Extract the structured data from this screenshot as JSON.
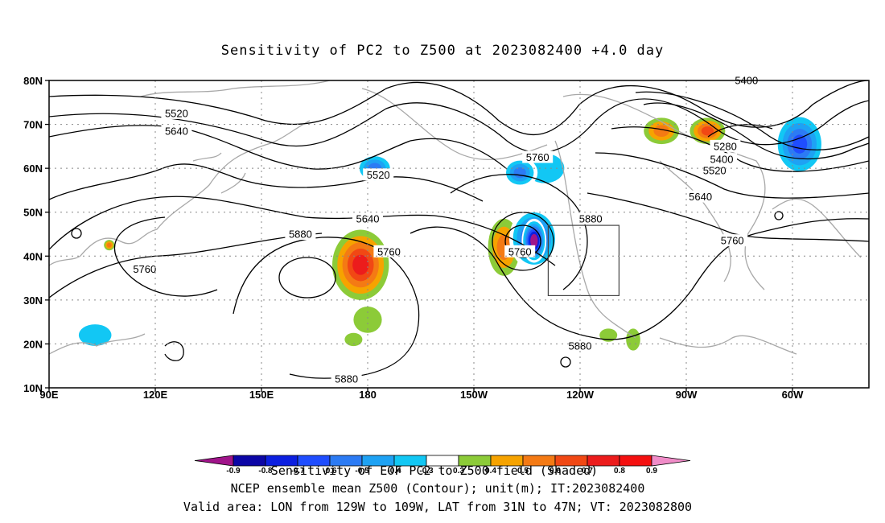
{
  "title": "Sensitivity of PC2 to Z500 at 2023082400 +4.0 day",
  "map": {
    "lon_range": [
      90,
      300
    ],
    "lat_range": [
      10,
      80
    ],
    "lat_ticks": [
      {
        "v": 80,
        "t": "80N"
      },
      {
        "v": 70,
        "t": "70N"
      },
      {
        "v": 60,
        "t": "60N"
      },
      {
        "v": 50,
        "t": "50N"
      },
      {
        "v": 40,
        "t": "40N"
      },
      {
        "v": 30,
        "t": "30N"
      },
      {
        "v": 20,
        "t": "20N"
      },
      {
        "v": 10,
        "t": "10N"
      }
    ],
    "lon_ticks": [
      {
        "v": 90,
        "t": "90E"
      },
      {
        "v": 120,
        "t": "120E"
      },
      {
        "v": 150,
        "t": "150E"
      },
      {
        "v": 180,
        "t": "180"
      },
      {
        "v": 210,
        "t": "150W"
      },
      {
        "v": 240,
        "t": "120W"
      },
      {
        "v": 270,
        "t": "90W"
      },
      {
        "v": 300,
        "t": "60W"
      }
    ],
    "contour_labels": [
      {
        "t": "5520",
        "lon": 126,
        "lat": 72.5
      },
      {
        "t": "5640",
        "lon": 126,
        "lat": 68.5
      },
      {
        "t": "5520",
        "lon": 183,
        "lat": 58.5
      },
      {
        "t": "5640",
        "lon": 180,
        "lat": 48.5
      },
      {
        "t": "5880",
        "lon": 161,
        "lat": 45
      },
      {
        "t": "5760",
        "lon": 117,
        "lat": 37
      },
      {
        "t": "5760",
        "lon": 186,
        "lat": 41
      },
      {
        "t": "5880",
        "lon": 174,
        "lat": 12
      },
      {
        "t": "5760",
        "lon": 228,
        "lat": 62.5
      },
      {
        "t": "5760",
        "lon": 223,
        "lat": 41
      },
      {
        "t": "5880",
        "lon": 243,
        "lat": 48.5
      },
      {
        "t": "5880",
        "lon": 240,
        "lat": 19.5
      },
      {
        "t": "5400",
        "lon": 287,
        "lat": 80
      },
      {
        "t": "5280",
        "lon": 281,
        "lat": 65
      },
      {
        "t": "5400",
        "lon": 280,
        "lat": 62
      },
      {
        "t": "5520",
        "lon": 278,
        "lat": 59.5
      },
      {
        "t": "5640",
        "lon": 274,
        "lat": 53.5
      },
      {
        "t": "5760",
        "lon": 283,
        "lat": 43.5
      }
    ],
    "valid_box": {
      "lon": [
        231,
        251
      ],
      "lat": [
        31,
        47
      ]
    },
    "shading": [
      {
        "lon": 178,
        "lat": 38,
        "rx": 8,
        "ry": 8,
        "value": 0.7
      },
      {
        "lon": 180,
        "lat": 25.5,
        "rx": 4,
        "ry": 3,
        "value": 0.3
      },
      {
        "lon": 176,
        "lat": 21,
        "rx": 2.5,
        "ry": 1.5,
        "value": 0.3
      },
      {
        "lon": 218.5,
        "lat": 42,
        "rx": 4.5,
        "ry": 6.5,
        "value": 0.5
      },
      {
        "lon": 227,
        "lat": 44,
        "rx": 7,
        "ry": 7,
        "value": -0.8
      },
      {
        "lon": 227,
        "lat": 43.5,
        "rx": 3.5,
        "ry": 5,
        "value": -1.0
      },
      {
        "lon": 230,
        "lat": 60,
        "rx": 9,
        "ry": 5.5,
        "value": -0.4
      },
      {
        "lon": 223,
        "lat": 59,
        "rx": 5,
        "ry": 3.5,
        "value": -0.6
      },
      {
        "lon": 182,
        "lat": 60,
        "rx": 5.5,
        "ry": 3.5,
        "value": -0.6
      },
      {
        "lon": 155,
        "lat": 61,
        "rx": 2.5,
        "ry": 1.5,
        "value": -0.3
      },
      {
        "lon": 276,
        "lat": 68.5,
        "rx": 5,
        "ry": 3,
        "value": 0.6
      },
      {
        "lon": 263,
        "lat": 68.5,
        "rx": 5,
        "ry": 3,
        "value": 0.5
      },
      {
        "lon": 302,
        "lat": 65.5,
        "rx": 7.5,
        "ry": 7.5,
        "value": -0.7
      },
      {
        "lon": 103,
        "lat": 22,
        "rx": 7.5,
        "ry": 4,
        "value": -0.4
      },
      {
        "lon": 92,
        "lat": 18,
        "rx": 2.5,
        "ry": 3.5,
        "value": -0.3
      },
      {
        "lon": 107,
        "lat": 42.5,
        "rx": 1.5,
        "ry": 1.2,
        "value": 0.5
      },
      {
        "lon": 248,
        "lat": 22,
        "rx": 2.5,
        "ry": 1.5,
        "value": 0.3
      },
      {
        "lon": 255,
        "lat": 21,
        "rx": 2,
        "ry": 2.5,
        "value": 0.3
      },
      {
        "lon": 288,
        "lat": 22,
        "rx": 2,
        "ry": 1.5,
        "value": -0.3
      },
      {
        "lon": 313,
        "lat": 18,
        "rx": 3,
        "ry": 4,
        "value": -0.3
      }
    ]
  },
  "colorbar": {
    "levels": [
      -0.9,
      -0.8,
      -0.7,
      -0.6,
      -0.5,
      -0.4,
      -0.3,
      0.3,
      0.4,
      0.5,
      0.6,
      0.7,
      0.8,
      0.9
    ],
    "tick_labels": [
      "-0.9",
      "-0.8",
      "-0.7",
      "-0.6",
      "-0.5",
      "-0.4",
      "-0.3",
      "0.3",
      "0.4",
      "0.5",
      "0.6",
      "0.7",
      "0.8",
      "0.9"
    ],
    "colors": [
      "#a0148a",
      "#0c06a6",
      "#0c1fe0",
      "#1f4dff",
      "#2c7bf4",
      "#1ea2f4",
      "#12c7f4",
      "#ffffff",
      "#8ccb38",
      "#f6a300",
      "#f47a14",
      "#f14814",
      "#ec1c1c",
      "#f41010",
      "#f08cc8"
    ]
  },
  "footer": [
    "Sensitivity of EOF PC2 to Z500 field (Shaded)",
    "NCEP ensemble mean Z500 (Contour); unit(m); IT:2023082400",
    "Valid area: LON from 129W to 109W, LAT from 31N to 47N; VT: 2023082800"
  ]
}
